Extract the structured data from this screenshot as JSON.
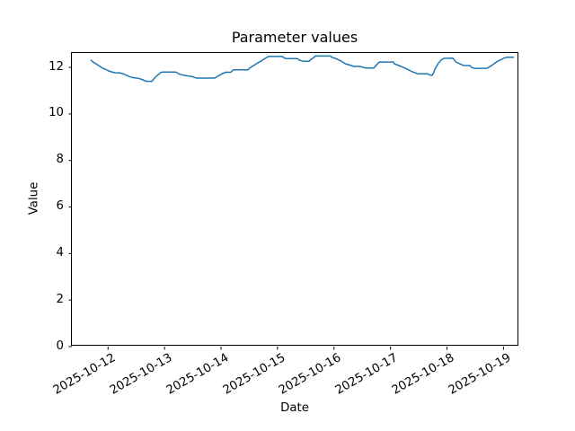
{
  "figure": {
    "background_color": "#ffffff",
    "spine_color": "#000000",
    "tick_color": "#000000"
  },
  "chart_data": {
    "type": "line",
    "title": "Parameter values",
    "xlabel": "Date",
    "ylabel": "Value",
    "grid": false,
    "legend": null,
    "x_epoch_date": "2025-10-12",
    "x_tick_labels": [
      "2025-10-12",
      "2025-10-13",
      "2025-10-14",
      "2025-10-15",
      "2025-10-16",
      "2025-10-17",
      "2025-10-18",
      "2025-10-19"
    ],
    "x_tick_offsets_days": [
      0,
      1,
      2,
      3,
      4,
      5,
      6,
      7
    ],
    "x_tick_rotation_deg": 30,
    "y_ticks": [
      0,
      2,
      4,
      6,
      8,
      10,
      12
    ],
    "xlim_days": [
      -0.64,
      7.28
    ],
    "ylim": [
      0,
      12.62
    ],
    "series": [
      {
        "name": "Parameter values",
        "color": "#1f77b4",
        "line_width": 1.5,
        "points_days_value": [
          [
            -0.307,
            12.32
          ],
          [
            -0.259,
            12.22
          ],
          [
            -0.196,
            12.13
          ],
          [
            -0.148,
            12.05
          ],
          [
            -0.1,
            11.97
          ],
          [
            -0.037,
            11.91
          ],
          [
            0.011,
            11.85
          ],
          [
            0.059,
            11.81
          ],
          [
            0.123,
            11.77
          ],
          [
            0.218,
            11.76
          ],
          [
            0.282,
            11.71
          ],
          [
            0.329,
            11.66
          ],
          [
            0.377,
            11.61
          ],
          [
            0.441,
            11.56
          ],
          [
            0.536,
            11.53
          ],
          [
            0.6,
            11.48
          ],
          [
            0.648,
            11.43
          ],
          [
            0.679,
            11.4
          ],
          [
            0.775,
            11.4
          ],
          [
            0.807,
            11.49
          ],
          [
            0.854,
            11.62
          ],
          [
            0.934,
            11.78
          ],
          [
            0.966,
            11.8
          ],
          [
            1.204,
            11.8
          ],
          [
            1.252,
            11.72
          ],
          [
            1.363,
            11.65
          ],
          [
            1.491,
            11.61
          ],
          [
            1.523,
            11.57
          ],
          [
            1.57,
            11.54
          ],
          [
            1.889,
            11.54
          ],
          [
            1.952,
            11.64
          ],
          [
            2.032,
            11.74
          ],
          [
            2.079,
            11.79
          ],
          [
            2.175,
            11.79
          ],
          [
            2.207,
            11.88
          ],
          [
            2.239,
            11.9
          ],
          [
            2.477,
            11.9
          ],
          [
            2.493,
            11.95
          ],
          [
            2.557,
            12.05
          ],
          [
            2.605,
            12.12
          ],
          [
            2.652,
            12.2
          ],
          [
            2.716,
            12.28
          ],
          [
            2.764,
            12.36
          ],
          [
            2.812,
            12.43
          ],
          [
            2.843,
            12.47
          ],
          [
            3.082,
            12.47
          ],
          [
            3.114,
            12.42
          ],
          [
            3.146,
            12.38
          ],
          [
            3.352,
            12.38
          ],
          [
            3.384,
            12.32
          ],
          [
            3.432,
            12.28
          ],
          [
            3.464,
            12.26
          ],
          [
            3.559,
            12.26
          ],
          [
            3.591,
            12.34
          ],
          [
            3.639,
            12.42
          ],
          [
            3.671,
            12.49
          ],
          [
            3.941,
            12.49
          ],
          [
            3.957,
            12.44
          ],
          [
            4.021,
            12.39
          ],
          [
            4.069,
            12.34
          ],
          [
            4.116,
            12.29
          ],
          [
            4.196,
            12.16
          ],
          [
            4.307,
            12.08
          ],
          [
            4.355,
            12.04
          ],
          [
            4.466,
            12.04
          ],
          [
            4.514,
            12.0
          ],
          [
            4.578,
            11.97
          ],
          [
            4.705,
            11.97
          ],
          [
            4.737,
            12.06
          ],
          [
            4.769,
            12.15
          ],
          [
            4.8,
            12.23
          ],
          [
            5.053,
            12.23
          ],
          [
            5.069,
            12.15
          ],
          [
            5.132,
            12.1
          ],
          [
            5.18,
            12.05
          ],
          [
            5.228,
            12.0
          ],
          [
            5.292,
            11.93
          ],
          [
            5.339,
            11.87
          ],
          [
            5.387,
            11.81
          ],
          [
            5.451,
            11.76
          ],
          [
            5.467,
            11.73
          ],
          [
            5.658,
            11.73
          ],
          [
            5.69,
            11.68
          ],
          [
            5.737,
            11.66
          ],
          [
            5.769,
            11.8
          ],
          [
            5.785,
            11.92
          ],
          [
            5.817,
            12.05
          ],
          [
            5.849,
            12.18
          ],
          [
            5.897,
            12.31
          ],
          [
            5.944,
            12.39
          ],
          [
            6.103,
            12.4
          ],
          [
            6.167,
            12.22
          ],
          [
            6.262,
            12.12
          ],
          [
            6.294,
            12.08
          ],
          [
            6.406,
            12.08
          ],
          [
            6.437,
            12.0
          ],
          [
            6.485,
            11.96
          ],
          [
            6.708,
            11.96
          ],
          [
            6.755,
            12.03
          ],
          [
            6.803,
            12.1
          ],
          [
            6.851,
            12.19
          ],
          [
            6.899,
            12.27
          ],
          [
            6.962,
            12.34
          ],
          [
            7.01,
            12.4
          ],
          [
            7.058,
            12.44
          ],
          [
            7.185,
            12.44
          ]
        ]
      }
    ]
  }
}
